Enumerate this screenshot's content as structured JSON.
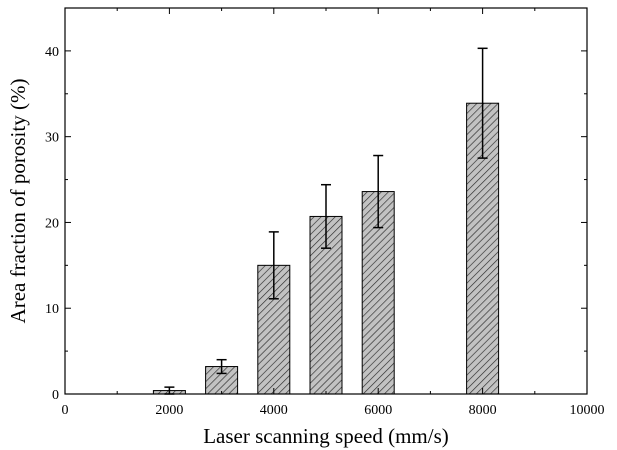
{
  "chart_data": {
    "type": "bar",
    "title": "",
    "xlabel": "Laser scanning speed (mm/s)",
    "ylabel": "Area fraction of porosity (%)",
    "xlim": [
      0,
      10000
    ],
    "ylim": [
      0,
      45
    ],
    "x_ticks": [
      0,
      2000,
      4000,
      6000,
      8000,
      10000
    ],
    "y_ticks": [
      0,
      10,
      20,
      30,
      40
    ],
    "grid": false,
    "legend": "none",
    "bar_fill": "hatched",
    "bar_color": "#b0b0b0",
    "x": [
      2000,
      3000,
      4000,
      5000,
      6000,
      8000
    ],
    "values": [
      0.4,
      3.2,
      15.0,
      20.7,
      23.6,
      33.9
    ],
    "error": [
      0.4,
      0.8,
      3.9,
      3.7,
      4.2,
      6.4
    ]
  }
}
